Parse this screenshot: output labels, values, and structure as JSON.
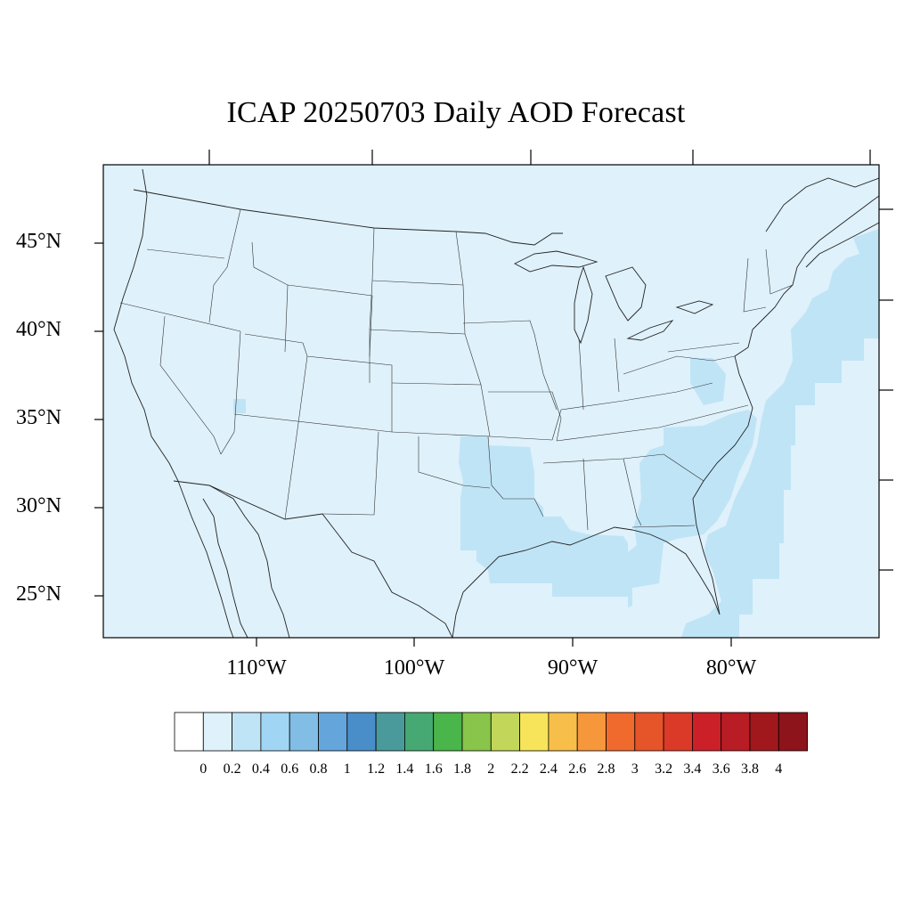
{
  "title": "ICAP 20250703 Daily AOD Forecast",
  "lat_labels": [
    "45°N",
    "40°N",
    "35°N",
    "30°N",
    "25°N"
  ],
  "lon_labels": [
    "110°W",
    "100°W",
    "90°W",
    "80°W"
  ],
  "colorbar": {
    "labels": [
      "0",
      "0.2",
      "0.4",
      "0.6",
      "0.8",
      "1",
      "1.2",
      "1.4",
      "1.6",
      "1.8",
      "2",
      "2.2",
      "2.4",
      "2.6",
      "2.8",
      "3",
      "3.2",
      "3.4",
      "3.6",
      "3.8",
      "4"
    ],
    "colors": [
      "#ffffff",
      "#dff1fb",
      "#bfe4f6",
      "#a0d6f3",
      "#82bde5",
      "#64a5dc",
      "#4a8ec9",
      "#4a9a9c",
      "#46a872",
      "#4ab54a",
      "#88c54a",
      "#c2d75a",
      "#f7e45a",
      "#f7bf4a",
      "#f6973c",
      "#f06a2e",
      "#e6542a",
      "#dc3a28",
      "#cc2028",
      "#b81c24",
      "#a0181c",
      "#8c141a"
    ]
  },
  "map": {
    "background_color": "#dff1fb",
    "elevated_aod_color": "#bfe4f6",
    "extent": {
      "lon_min": -120,
      "lon_max": -71,
      "lat_min": 22.5,
      "lat_max": 49
    }
  }
}
